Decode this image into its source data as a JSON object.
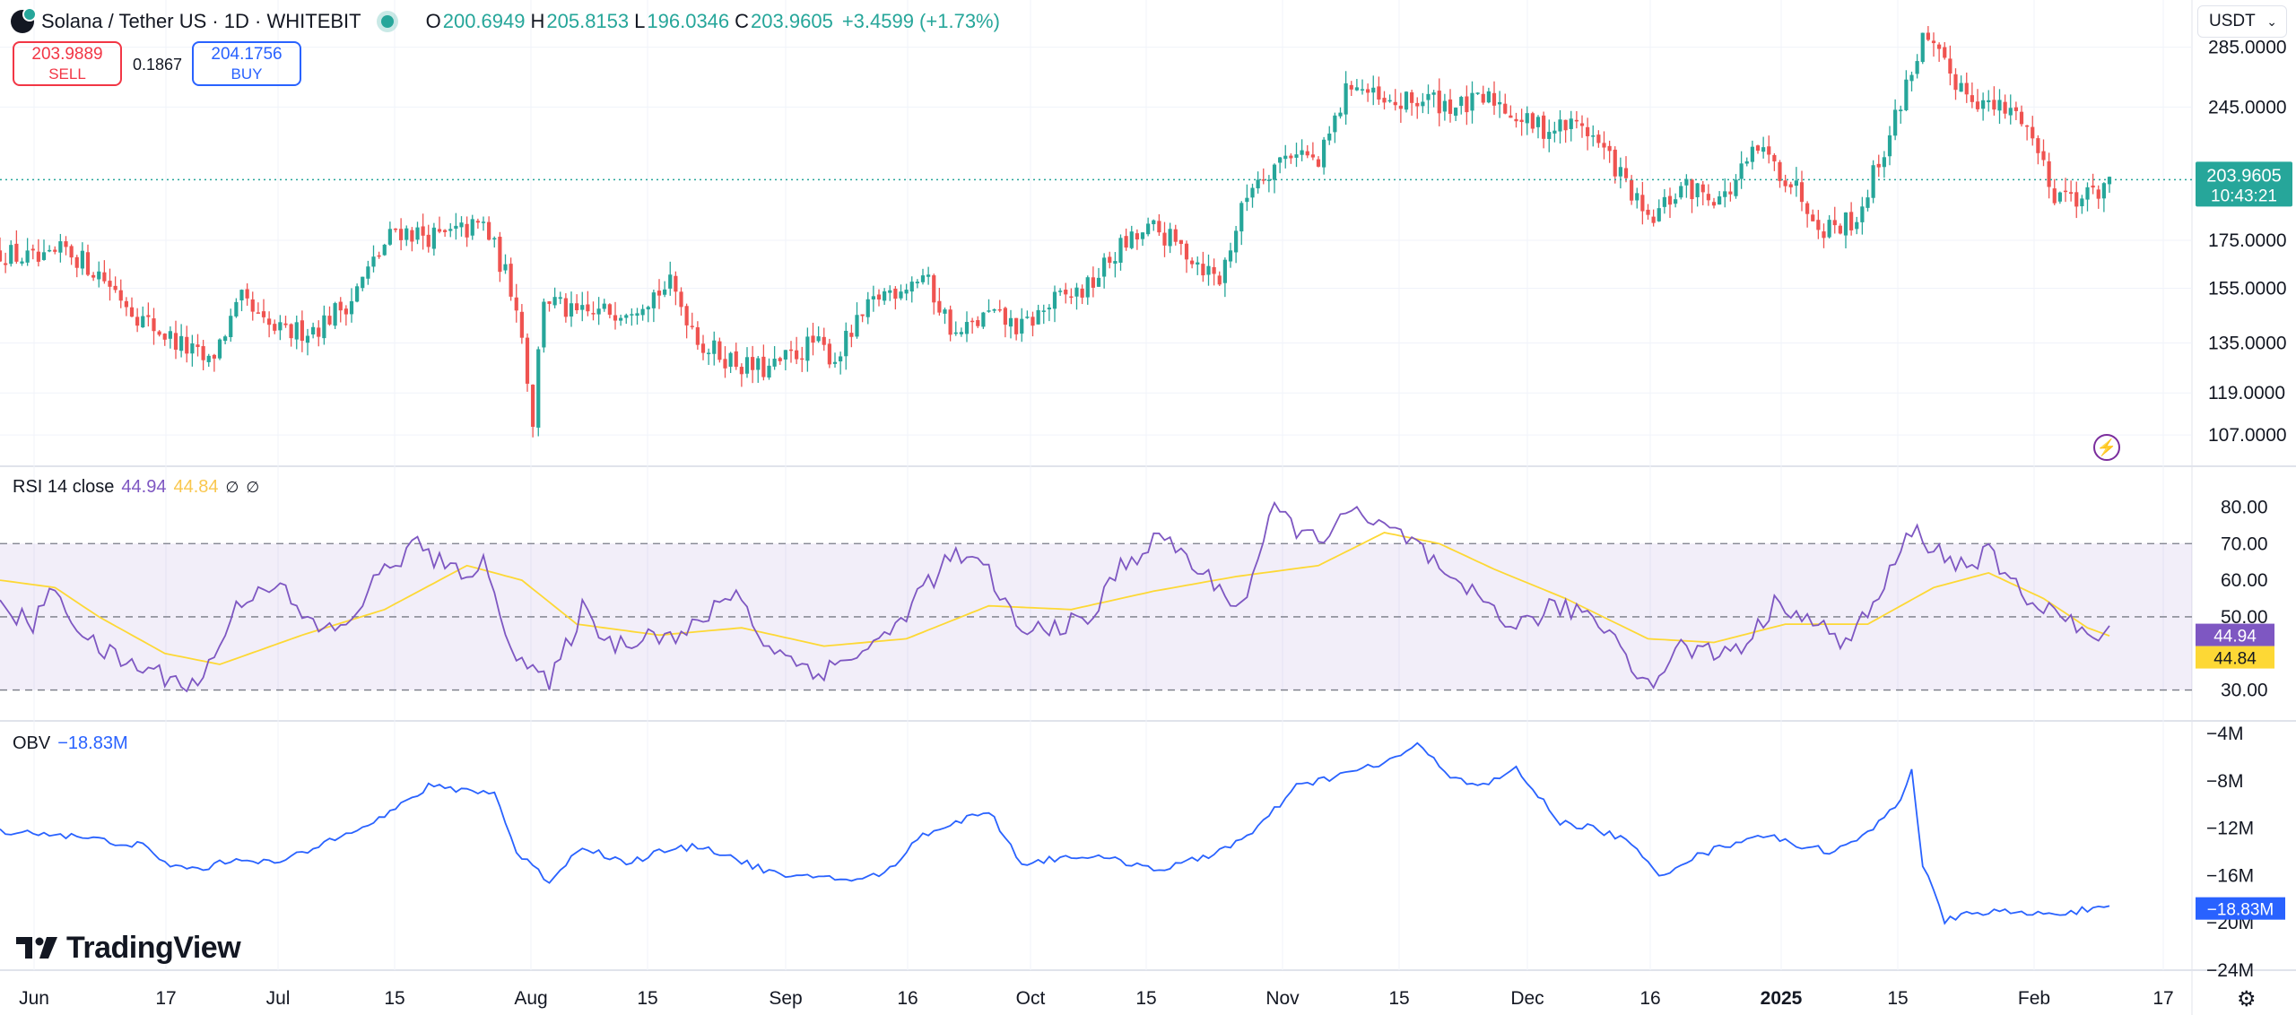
{
  "header": {
    "title": "Solana / Tether US · 1D · WHITEBIT",
    "open_key": "O",
    "open": "200.6949",
    "high_key": "H",
    "high": "205.8153",
    "low_key": "L",
    "low": "196.0346",
    "close_key": "C",
    "close": "203.9605",
    "change": "+3.4599 (+1.73%)"
  },
  "trade": {
    "sell_price": "203.9889",
    "sell_label": "SELL",
    "spread": "0.1867",
    "buy_price": "204.1756",
    "buy_label": "BUY"
  },
  "currency_selector": "USDT",
  "price_tag": {
    "value": "203.9605",
    "countdown": "10:43:21"
  },
  "rsi_legend": {
    "name": "RSI 14 close",
    "value": "44.94",
    "ma_value": "44.84",
    "flag1": "∅",
    "flag2": "∅"
  },
  "obv_legend": {
    "name": "OBV",
    "value": "−18.83M"
  },
  "brand": "TradingView",
  "colors": {
    "up": "#26a69a",
    "down": "#ef5350",
    "rsi": "#7e57c2",
    "rsi_ma": "#fdd835",
    "obv": "#2962ff"
  },
  "chart_data": [
    {
      "type": "candlestick",
      "title": "Solana / Tether US · 1D · WHITEBIT",
      "x_tick_labels": [
        "Jun",
        "17",
        "Jul",
        "15",
        "Aug",
        "15",
        "Sep",
        "16",
        "Oct",
        "15",
        "Nov",
        "15",
        "Dec",
        "16",
        "2025",
        "15",
        "Feb",
        "17"
      ],
      "y_tick_labels": [
        "285.0000",
        "245.0000",
        "175.0000",
        "155.0000",
        "135.0000",
        "119.0000",
        "107.0000"
      ],
      "y_ticks": [
        285,
        245,
        175,
        155,
        135,
        119,
        107
      ],
      "scale": "log",
      "ylim": [
        100,
        300
      ],
      "last_price": 203.9605,
      "close_anchors": [
        [
          0,
          170
        ],
        [
          8,
          165
        ],
        [
          12,
          171
        ],
        [
          18,
          161
        ],
        [
          26,
          143
        ],
        [
          34,
          133
        ],
        [
          38,
          128
        ],
        [
          44,
          150
        ],
        [
          48,
          141
        ],
        [
          52,
          138
        ],
        [
          58,
          141
        ],
        [
          64,
          151
        ],
        [
          72,
          180
        ],
        [
          80,
          176
        ],
        [
          88,
          182
        ],
        [
          94,
          150
        ],
        [
          97,
          111
        ],
        [
          99,
          152
        ],
        [
          104,
          145
        ],
        [
          108,
          145
        ],
        [
          114,
          148
        ],
        [
          122,
          156
        ],
        [
          128,
          134
        ],
        [
          136,
          127
        ],
        [
          140,
          126
        ],
        [
          148,
          135
        ],
        [
          152,
          130
        ],
        [
          160,
          152
        ],
        [
          168,
          160
        ],
        [
          174,
          137
        ],
        [
          180,
          145
        ],
        [
          186,
          140
        ],
        [
          192,
          150
        ],
        [
          198,
          155
        ],
        [
          204,
          172
        ],
        [
          210,
          180
        ],
        [
          216,
          170
        ],
        [
          222,
          158
        ],
        [
          228,
          203
        ],
        [
          236,
          221
        ],
        [
          240,
          211
        ],
        [
          246,
          262
        ],
        [
          252,
          245
        ],
        [
          260,
          250
        ],
        [
          266,
          245
        ],
        [
          272,
          250
        ],
        [
          278,
          235
        ],
        [
          282,
          232
        ],
        [
          288,
          235
        ],
        [
          294,
          211
        ],
        [
          300,
          182
        ],
        [
          306,
          200
        ],
        [
          314,
          195
        ],
        [
          320,
          220
        ],
        [
          326,
          203
        ],
        [
          332,
          181
        ],
        [
          338,
          185
        ],
        [
          344,
          228
        ],
        [
          350,
          290
        ],
        [
          356,
          262
        ],
        [
          362,
          245
        ],
        [
          368,
          240
        ],
        [
          374,
          198
        ],
        [
          380,
          195
        ],
        [
          384,
          204
        ]
      ],
      "rsi": {
        "ylim": [
          25,
          85
        ],
        "y_tick_labels": [
          "80.00",
          "70.00",
          "60.00",
          "50.00",
          "30.00"
        ],
        "y_ticks": [
          80,
          70,
          60,
          50,
          30
        ],
        "overbought": 70,
        "middle": 50,
        "oversold": 30,
        "last_value": 44.94,
        "last_ma": 44.84,
        "anchors": [
          [
            0,
            52
          ],
          [
            6,
            48
          ],
          [
            10,
            58
          ],
          [
            16,
            43
          ],
          [
            22,
            38
          ],
          [
            28,
            35
          ],
          [
            36,
            31
          ],
          [
            44,
            55
          ],
          [
            50,
            60
          ],
          [
            56,
            48
          ],
          [
            62,
            46
          ],
          [
            70,
            63
          ],
          [
            76,
            70
          ],
          [
            82,
            62
          ],
          [
            88,
            64
          ],
          [
            94,
            40
          ],
          [
            100,
            31
          ],
          [
            106,
            52
          ],
          [
            112,
            42
          ],
          [
            118,
            46
          ],
          [
            124,
            44
          ],
          [
            130,
            52
          ],
          [
            134,
            58
          ],
          [
            138,
            45
          ],
          [
            144,
            38
          ],
          [
            150,
            35
          ],
          [
            156,
            40
          ],
          [
            162,
            45
          ],
          [
            168,
            58
          ],
          [
            174,
            67
          ],
          [
            180,
            62
          ],
          [
            186,
            45
          ],
          [
            192,
            48
          ],
          [
            198,
            48
          ],
          [
            204,
            64
          ],
          [
            212,
            72
          ],
          [
            220,
            60
          ],
          [
            226,
            53
          ],
          [
            232,
            79
          ],
          [
            240,
            70
          ],
          [
            244,
            79
          ],
          [
            252,
            74
          ],
          [
            258,
            70
          ],
          [
            264,
            58
          ],
          [
            270,
            55
          ],
          [
            276,
            47
          ],
          [
            282,
            52
          ],
          [
            288,
            52
          ],
          [
            294,
            45
          ],
          [
            300,
            31
          ],
          [
            306,
            42
          ],
          [
            312,
            40
          ],
          [
            318,
            43
          ],
          [
            324,
            55
          ],
          [
            330,
            48
          ],
          [
            336,
            43
          ],
          [
            342,
            55
          ],
          [
            348,
            74
          ],
          [
            356,
            64
          ],
          [
            362,
            67
          ],
          [
            368,
            56
          ],
          [
            374,
            52
          ],
          [
            380,
            44
          ],
          [
            384,
            45
          ]
        ],
        "ma_anchors": [
          [
            0,
            60
          ],
          [
            10,
            58
          ],
          [
            18,
            50
          ],
          [
            30,
            40
          ],
          [
            40,
            37
          ],
          [
            55,
            45
          ],
          [
            70,
            52
          ],
          [
            85,
            64
          ],
          [
            95,
            60
          ],
          [
            105,
            48
          ],
          [
            120,
            45
          ],
          [
            135,
            47
          ],
          [
            150,
            42
          ],
          [
            165,
            44
          ],
          [
            180,
            53
          ],
          [
            195,
            52
          ],
          [
            210,
            57
          ],
          [
            225,
            61
          ],
          [
            240,
            64
          ],
          [
            252,
            73
          ],
          [
            262,
            70
          ],
          [
            272,
            63
          ],
          [
            285,
            55
          ],
          [
            300,
            44
          ],
          [
            312,
            43
          ],
          [
            325,
            48
          ],
          [
            340,
            48
          ],
          [
            352,
            58
          ],
          [
            362,
            62
          ],
          [
            372,
            55
          ],
          [
            380,
            47
          ],
          [
            384,
            44.8
          ]
        ]
      },
      "obv": {
        "ylim": [
          -25,
          -3
        ],
        "y_tick_labels": [
          "−4M",
          "−8M",
          "−12M",
          "−16M",
          "−20M",
          "−24M"
        ],
        "y_ticks": [
          -4,
          -8,
          -12,
          -16,
          -20,
          -24
        ],
        "last_value": -18.83,
        "anchors": [
          [
            0,
            -12.2
          ],
          [
            10,
            -12.5
          ],
          [
            18,
            -13
          ],
          [
            26,
            -13.5
          ],
          [
            30,
            -15
          ],
          [
            36,
            -15.5
          ],
          [
            44,
            -14.5
          ],
          [
            50,
            -15
          ],
          [
            56,
            -14
          ],
          [
            62,
            -12.5
          ],
          [
            70,
            -11
          ],
          [
            78,
            -8.5
          ],
          [
            86,
            -8.8
          ],
          [
            90,
            -9
          ],
          [
            94,
            -14
          ],
          [
            100,
            -16.5
          ],
          [
            106,
            -13.5
          ],
          [
            114,
            -15
          ],
          [
            120,
            -14
          ],
          [
            128,
            -13.5
          ],
          [
            136,
            -15
          ],
          [
            144,
            -16.3
          ],
          [
            150,
            -16
          ],
          [
            156,
            -16.5
          ],
          [
            162,
            -15.5
          ],
          [
            168,
            -12.5
          ],
          [
            174,
            -11.5
          ],
          [
            180,
            -10.5
          ],
          [
            186,
            -15
          ],
          [
            196,
            -14.3
          ],
          [
            204,
            -14.8
          ],
          [
            212,
            -15.5
          ],
          [
            220,
            -14.3
          ],
          [
            228,
            -12.5
          ],
          [
            236,
            -8.5
          ],
          [
            244,
            -7.5
          ],
          [
            252,
            -6.5
          ],
          [
            258,
            -5
          ],
          [
            264,
            -7.5
          ],
          [
            270,
            -8.5
          ],
          [
            276,
            -7
          ],
          [
            284,
            -11.5
          ],
          [
            290,
            -12
          ],
          [
            296,
            -13
          ],
          [
            302,
            -16
          ],
          [
            308,
            -14.5
          ],
          [
            314,
            -13.5
          ],
          [
            320,
            -12.5
          ],
          [
            328,
            -13.5
          ],
          [
            334,
            -14
          ],
          [
            340,
            -12.5
          ],
          [
            346,
            -9.5
          ],
          [
            348,
            -7
          ],
          [
            350,
            -15
          ],
          [
            354,
            -20
          ],
          [
            356,
            -19.5
          ],
          [
            362,
            -19
          ],
          [
            370,
            -19.3
          ],
          [
            378,
            -19
          ],
          [
            384,
            -18.83
          ]
        ]
      }
    }
  ]
}
